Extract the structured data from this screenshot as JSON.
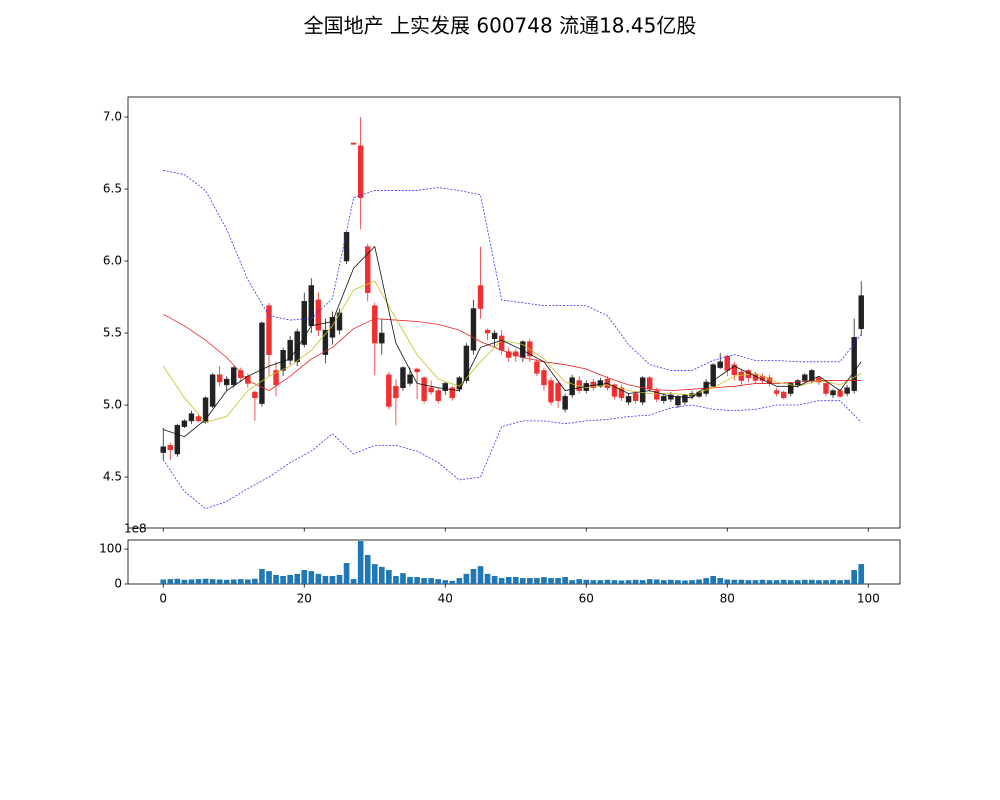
{
  "chart_data": [
    {
      "type": "candlestick",
      "title": "全国地产 上实发展 600748 流通18.45亿股",
      "x": [
        0,
        1,
        2,
        3,
        4,
        5,
        6,
        7,
        8,
        9,
        10,
        11,
        12,
        13,
        14,
        15,
        16,
        17,
        18,
        19,
        20,
        21,
        22,
        23,
        24,
        25,
        26,
        27,
        28,
        29,
        30,
        31,
        32,
        33,
        34,
        35,
        36,
        37,
        38,
        39,
        40,
        41,
        42,
        43,
        44,
        45,
        46,
        47,
        48,
        49,
        50,
        51,
        52,
        53,
        54,
        55,
        56,
        57,
        58,
        59,
        60,
        61,
        62,
        63,
        64,
        65,
        66,
        67,
        68,
        69,
        70,
        71,
        72,
        73,
        74,
        75,
        76,
        77,
        78,
        79,
        80,
        81,
        82,
        83,
        84,
        85,
        86,
        87,
        88,
        89,
        90,
        91,
        92,
        93,
        94,
        95,
        96,
        97,
        98,
        99
      ],
      "open": [
        4.67,
        4.72,
        4.66,
        4.85,
        4.89,
        4.92,
        4.88,
        4.99,
        5.21,
        5.14,
        5.14,
        5.24,
        5.2,
        5.09,
        5.01,
        5.69,
        5.24,
        5.24,
        5.31,
        5.3,
        5.42,
        5.55,
        5.73,
        5.35,
        5.47,
        5.52,
        6.0,
        6.82,
        6.8,
        6.1,
        5.69,
        5.43,
        5.21,
        5.13,
        5.12,
        5.15,
        5.25,
        5.19,
        5.12,
        5.1,
        5.1,
        5.12,
        5.11,
        5.17,
        5.38,
        5.83,
        5.52,
        5.46,
        5.48,
        5.37,
        5.37,
        5.33,
        5.44,
        5.3,
        5.24,
        5.17,
        5.15,
        4.97,
        5.07,
        5.17,
        5.1,
        5.16,
        5.13,
        5.18,
        5.14,
        5.12,
        5.02,
        5.08,
        5.02,
        5.19,
        5.1,
        5.03,
        5.04,
        5.0,
        5.02,
        5.06,
        5.06,
        5.08,
        5.13,
        5.26,
        5.34,
        5.28,
        5.23,
        5.24,
        5.21,
        5.2,
        5.19,
        5.1,
        5.09,
        5.08,
        5.14,
        5.17,
        5.17,
        5.19,
        5.15,
        5.07,
        5.1,
        5.08,
        5.1,
        5.53
      ],
      "high": [
        4.84,
        4.74,
        4.87,
        4.9,
        4.96,
        4.93,
        5.06,
        5.22,
        5.27,
        5.2,
        5.27,
        5.26,
        5.22,
        5.1,
        5.58,
        5.71,
        5.3,
        5.4,
        5.48,
        5.53,
        5.78,
        5.88,
        5.78,
        5.6,
        5.65,
        5.67,
        6.2,
        6.82,
        7.0,
        6.12,
        5.71,
        5.6,
        5.23,
        5.18,
        5.27,
        5.26,
        5.26,
        5.2,
        5.17,
        5.12,
        5.16,
        5.13,
        5.2,
        5.43,
        5.73,
        6.1,
        5.53,
        5.52,
        5.52,
        5.4,
        5.39,
        5.45,
        5.46,
        5.32,
        5.26,
        5.19,
        5.17,
        5.08,
        5.21,
        5.2,
        5.17,
        5.18,
        5.19,
        5.2,
        5.15,
        5.14,
        5.08,
        5.1,
        5.2,
        5.2,
        5.12,
        5.08,
        5.09,
        5.07,
        5.08,
        5.1,
        5.1,
        5.18,
        5.29,
        5.36,
        5.35,
        5.3,
        5.25,
        5.25,
        5.23,
        5.22,
        5.21,
        5.12,
        5.1,
        5.16,
        5.18,
        5.22,
        5.25,
        5.2,
        5.17,
        5.11,
        5.11,
        5.14,
        5.6,
        5.86
      ],
      "low": [
        4.62,
        4.62,
        4.64,
        4.84,
        4.87,
        4.88,
        4.87,
        4.98,
        5.13,
        5.1,
        5.12,
        5.16,
        5.12,
        4.89,
        4.99,
        5.2,
        5.06,
        5.2,
        5.28,
        5.27,
        5.4,
        5.5,
        5.48,
        5.29,
        5.42,
        5.49,
        5.98,
        6.81,
        6.22,
        5.72,
        5.21,
        5.35,
        4.97,
        4.86,
        5.1,
        5.13,
        5.04,
        5.01,
        5.07,
        5.01,
        5.07,
        5.03,
        5.09,
        5.15,
        5.35,
        5.6,
        5.45,
        5.4,
        5.35,
        5.3,
        5.3,
        5.3,
        5.3,
        5.2,
        5.1,
        5.0,
        4.98,
        4.95,
        5.05,
        5.08,
        5.08,
        5.1,
        5.12,
        5.1,
        5.04,
        5.03,
        5.0,
        5.01,
        5.0,
        5.09,
        5.02,
        5.01,
        5.02,
        4.98,
        5.0,
        5.04,
        5.05,
        5.06,
        5.12,
        5.25,
        5.2,
        5.17,
        5.14,
        5.16,
        5.15,
        5.15,
        5.13,
        5.06,
        5.04,
        5.06,
        5.12,
        5.15,
        5.15,
        5.14,
        5.06,
        5.05,
        5.05,
        5.06,
        5.08,
        5.48
      ],
      "close": [
        4.71,
        4.69,
        4.86,
        4.89,
        4.94,
        4.89,
        5.05,
        5.21,
        5.16,
        5.18,
        5.26,
        5.19,
        5.15,
        5.05,
        5.57,
        5.35,
        5.14,
        5.38,
        5.45,
        5.51,
        5.72,
        5.83,
        5.52,
        5.52,
        5.61,
        5.64,
        6.2,
        6.81,
        6.44,
        5.78,
        5.43,
        5.5,
        4.99,
        5.05,
        5.26,
        5.21,
        5.23,
        5.03,
        5.09,
        5.03,
        5.15,
        5.05,
        5.19,
        5.41,
        5.67,
        5.67,
        5.5,
        5.5,
        5.38,
        5.33,
        5.34,
        5.44,
        5.34,
        5.22,
        5.14,
        5.02,
        5.03,
        5.06,
        5.19,
        5.1,
        5.15,
        5.12,
        5.17,
        5.12,
        5.06,
        5.05,
        5.06,
        5.03,
        5.19,
        5.11,
        5.04,
        5.06,
        5.07,
        5.06,
        5.07,
        5.08,
        5.09,
        5.16,
        5.28,
        5.3,
        5.24,
        5.21,
        5.17,
        5.19,
        5.17,
        5.17,
        5.15,
        5.08,
        5.05,
        5.15,
        5.17,
        5.21,
        5.24,
        5.16,
        5.08,
        5.1,
        5.06,
        5.12,
        5.47,
        5.76
      ],
      "up_color": "#222222",
      "down_color": "#f03030",
      "lines": {
        "x": [
          0,
          3,
          6,
          9,
          12,
          15,
          18,
          21,
          24,
          27,
          30,
          33,
          36,
          39,
          42,
          45,
          48,
          51,
          54,
          57,
          60,
          63,
          66,
          69,
          72,
          75,
          78,
          81,
          84,
          87,
          90,
          93,
          96,
          99
        ],
        "series": [
          {
            "color": "#3333ff",
            "dash": true,
            "values": [
              6.63,
              6.6,
              6.49,
              6.22,
              5.87,
              5.62,
              5.59,
              5.6,
              5.74,
              6.44,
              6.49,
              6.49,
              6.49,
              6.51,
              6.49,
              6.46,
              5.73,
              5.71,
              5.69,
              5.69,
              5.69,
              5.62,
              5.42,
              5.28,
              5.24,
              5.24,
              5.31,
              5.35,
              5.31,
              5.31,
              5.3,
              5.3,
              5.3,
              5.49
            ]
          },
          {
            "color": "#3333ff",
            "dash": true,
            "values": [
              4.62,
              4.4,
              4.28,
              4.33,
              4.42,
              4.5,
              4.6,
              4.68,
              4.8,
              4.66,
              4.72,
              4.72,
              4.68,
              4.6,
              4.48,
              4.5,
              4.85,
              4.89,
              4.89,
              4.87,
              4.89,
              4.9,
              4.92,
              4.93,
              4.98,
              5.0,
              4.97,
              4.96,
              4.97,
              5.0,
              5.0,
              5.03,
              5.03,
              4.88
            ]
          },
          {
            "color": "#ee2222",
            "dash": false,
            "values": [
              5.63,
              5.55,
              5.45,
              5.33,
              5.17,
              5.1,
              5.2,
              5.32,
              5.4,
              5.53,
              5.6,
              5.59,
              5.58,
              5.56,
              5.52,
              5.44,
              5.38,
              5.33,
              5.3,
              5.28,
              5.25,
              5.19,
              5.14,
              5.11,
              5.1,
              5.11,
              5.12,
              5.13,
              5.15,
              5.15,
              5.16,
              5.17,
              5.17,
              5.17
            ]
          },
          {
            "color": "#c8c020",
            "dash": false,
            "values": [
              5.27,
              5.05,
              4.88,
              4.92,
              5.1,
              5.2,
              5.27,
              5.38,
              5.55,
              5.8,
              5.86,
              5.6,
              5.35,
              5.18,
              5.13,
              5.3,
              5.45,
              5.42,
              5.32,
              5.16,
              5.12,
              5.14,
              5.1,
              5.08,
              5.08,
              5.07,
              5.12,
              5.2,
              5.22,
              5.16,
              5.13,
              5.17,
              5.14,
              5.22
            ]
          },
          {
            "color": "#111111",
            "dash": false,
            "values": [
              4.83,
              4.78,
              4.9,
              5.1,
              5.2,
              5.27,
              5.32,
              5.55,
              5.58,
              5.95,
              6.1,
              5.43,
              5.15,
              5.12,
              5.1,
              5.4,
              5.45,
              5.38,
              5.3,
              5.1,
              5.13,
              5.15,
              5.08,
              5.1,
              5.06,
              5.05,
              5.17,
              5.27,
              5.2,
              5.13,
              5.13,
              5.2,
              5.1,
              5.3
            ]
          }
        ]
      },
      "xlim": [
        -5,
        104.5
      ],
      "ylim": [
        4.146,
        7.139
      ],
      "yticks": [
        4.5,
        {
          "value": 5,
          "label": "5.0"
        },
        5.5,
        {
          "value": 6,
          "label": "6.0"
        },
        6.5,
        {
          "value": 7,
          "label": "7.0"
        }
      ]
    },
    {
      "type": "bar",
      "values": [
        13,
        14,
        15,
        12,
        13,
        14,
        15,
        14,
        13,
        12,
        13,
        14,
        13,
        15,
        43,
        37,
        26,
        23,
        26,
        29,
        40,
        37,
        29,
        23,
        23,
        26,
        60,
        14,
        123,
        83,
        57,
        49,
        40,
        23,
        31,
        20,
        20,
        17,
        17,
        14,
        11,
        9,
        17,
        29,
        43,
        51,
        29,
        23,
        17,
        20,
        20,
        17,
        17,
        17,
        20,
        17,
        17,
        20,
        11,
        14,
        12,
        11,
        11,
        12,
        11,
        10,
        11,
        12,
        11,
        14,
        13,
        11,
        12,
        11,
        10,
        11,
        13,
        17,
        23,
        17,
        13,
        12,
        12,
        11,
        11,
        12,
        11,
        11,
        12,
        11,
        11,
        12,
        12,
        11,
        11,
        12,
        11,
        12,
        40,
        57
      ],
      "color": "#1f77b4",
      "offset_label": "1e8",
      "xlim": [
        -5,
        104.5
      ],
      "xticks": [
        0,
        20,
        40,
        60,
        80,
        100
      ],
      "ylim": [
        0,
        126
      ],
      "yticks": [
        0,
        100
      ]
    }
  ]
}
